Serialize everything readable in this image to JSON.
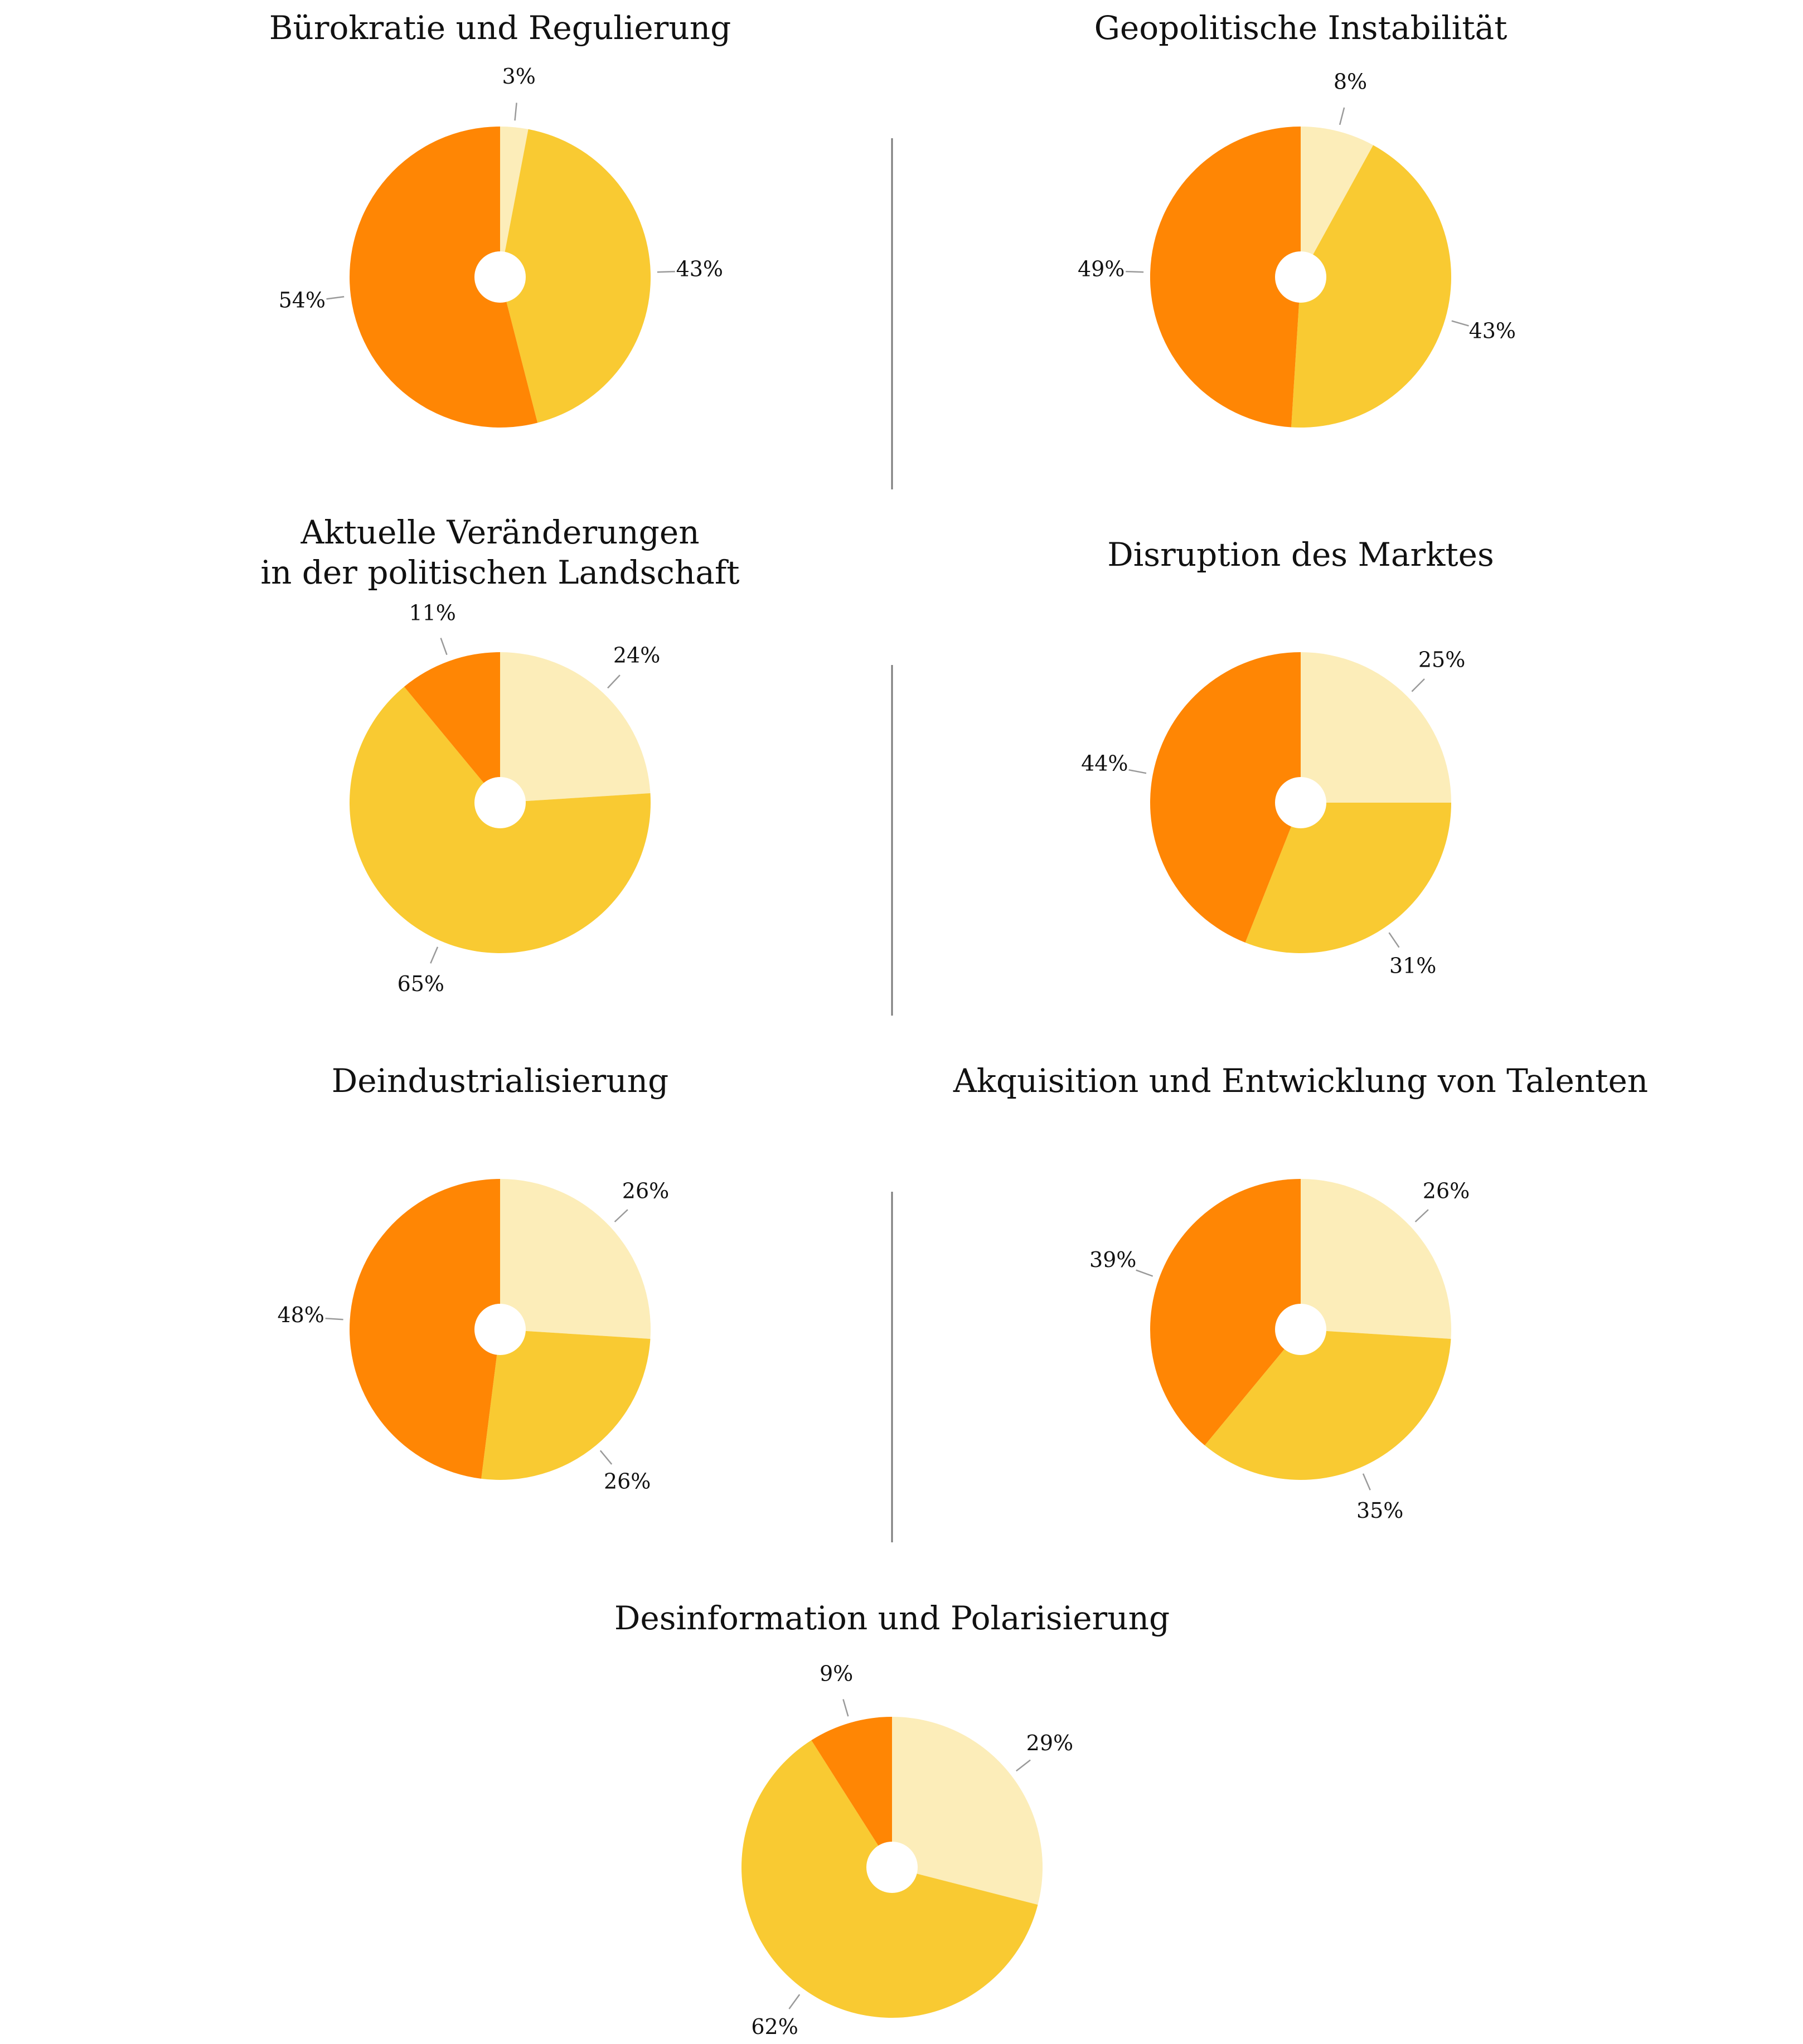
{
  "colors": {
    "light": "#FCEDB9",
    "mid": "#F9CA32",
    "dark": "#FF8604"
  },
  "chart_data": [
    {
      "type": "pie",
      "title": [
        "Bürokratie und Regulierung"
      ],
      "segments": [
        {
          "value": 3,
          "label": "3%",
          "color": "light"
        },
        {
          "value": 43,
          "label": "43%",
          "color": "mid"
        },
        {
          "value": 54,
          "label": "54%",
          "color": "dark"
        }
      ]
    },
    {
      "type": "pie",
      "title": [
        "Geopolitische Instabilität"
      ],
      "segments": [
        {
          "value": 8,
          "label": "8%",
          "color": "light"
        },
        {
          "value": 43,
          "label": "43%",
          "color": "mid"
        },
        {
          "value": 49,
          "label": "49%",
          "color": "dark"
        }
      ]
    },
    {
      "type": "pie",
      "title": [
        "Aktuelle Veränderungen",
        "in der politischen Landschaft"
      ],
      "segments": [
        {
          "value": 24,
          "label": "24%",
          "color": "light"
        },
        {
          "value": 65,
          "label": "65%",
          "color": "mid"
        },
        {
          "value": 11,
          "label": "11%",
          "color": "dark"
        }
      ]
    },
    {
      "type": "pie",
      "title": [
        "Disruption des Marktes"
      ],
      "segments": [
        {
          "value": 25,
          "label": "25%",
          "color": "light"
        },
        {
          "value": 31,
          "label": "31%",
          "color": "mid"
        },
        {
          "value": 44,
          "label": "44%",
          "color": "dark"
        }
      ]
    },
    {
      "type": "pie",
      "title": [
        "Deindustrialisierung"
      ],
      "segments": [
        {
          "value": 26,
          "label": "26%",
          "color": "light"
        },
        {
          "value": 26,
          "label": "26%",
          "color": "mid"
        },
        {
          "value": 48,
          "label": "48%",
          "color": "dark"
        }
      ]
    },
    {
      "type": "pie",
      "title": [
        "Akquisition und Entwicklung von Talenten"
      ],
      "segments": [
        {
          "value": 26,
          "label": "26%",
          "color": "light"
        },
        {
          "value": 35,
          "label": "35%",
          "color": "mid"
        },
        {
          "value": 39,
          "label": "39%",
          "color": "dark"
        }
      ]
    },
    {
      "type": "pie",
      "title": [
        "Desinformation und Polarisierung"
      ],
      "segments": [
        {
          "value": 29,
          "label": "29%",
          "color": "light"
        },
        {
          "value": 62,
          "label": "62%",
          "color": "mid"
        },
        {
          "value": 9,
          "label": "9%",
          "color": "dark"
        }
      ]
    }
  ]
}
